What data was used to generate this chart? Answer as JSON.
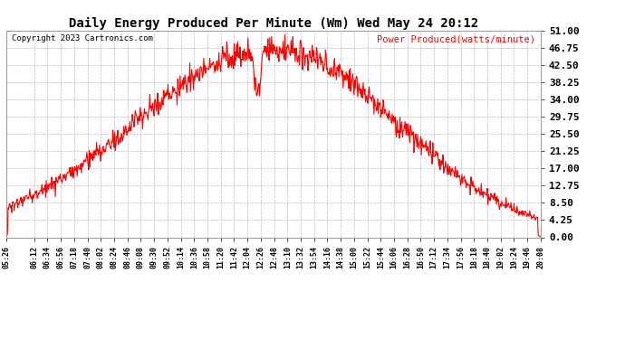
{
  "title": "Daily Energy Produced Per Minute (Wm) Wed May 24 20:12",
  "copyright": "Copyright 2023 Cartronics.com",
  "legend_label": "Power Produced(watts/minute)",
  "line_color": "red",
  "background_color": "#ffffff",
  "grid_color": "#bbbbbb",
  "yticks": [
    0.0,
    4.25,
    8.5,
    12.75,
    17.0,
    21.25,
    25.5,
    29.75,
    34.0,
    38.25,
    42.5,
    46.75,
    51.0
  ],
  "ymax": 51.0,
  "ymin": 0.0,
  "xtick_labels": [
    "05:26",
    "06:12",
    "06:34",
    "06:56",
    "07:18",
    "07:40",
    "08:02",
    "08:24",
    "08:46",
    "09:08",
    "09:30",
    "09:52",
    "10:14",
    "10:36",
    "10:58",
    "11:20",
    "11:42",
    "12:04",
    "12:26",
    "12:48",
    "13:10",
    "13:32",
    "13:54",
    "14:16",
    "14:38",
    "15:00",
    "15:22",
    "15:44",
    "16:06",
    "16:28",
    "16:50",
    "17:12",
    "17:34",
    "17:56",
    "18:18",
    "18:40",
    "19:02",
    "19:24",
    "19:46",
    "20:08"
  ]
}
